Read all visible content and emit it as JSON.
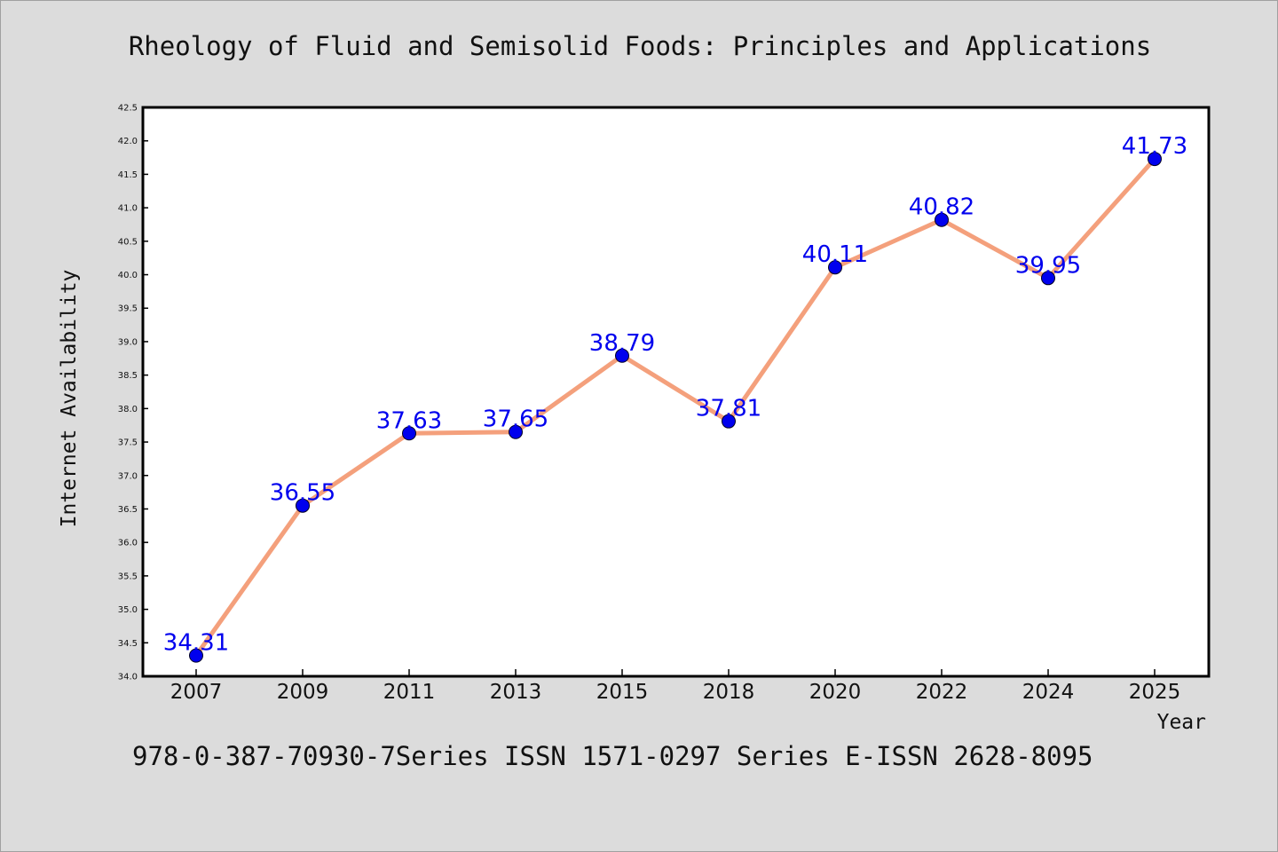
{
  "chart_data": {
    "type": "line",
    "title": "Rheology of Fluid and Semisolid Foods: Principles and Applications",
    "footer": "978-0-387-70930-7Series ISSN 1571-0297 Series E-ISSN 2628-8095",
    "xlabel": "Year",
    "ylabel": "Internet Availability",
    "categories": [
      "2007",
      "2009",
      "2011",
      "2013",
      "2015",
      "2018",
      "2020",
      "2022",
      "2024",
      "2025"
    ],
    "values": [
      34.31,
      36.55,
      37.63,
      37.65,
      38.79,
      37.81,
      40.11,
      40.82,
      39.95,
      41.73
    ],
    "value_labels": [
      "34.31",
      "36.55",
      "37.63",
      "37.65",
      "38.79",
      "37.81",
      "40.11",
      "40.82",
      "39.95",
      "41.73"
    ],
    "ylim": [
      34.0,
      42.5
    ],
    "yticks": [
      "34.0",
      "34.5",
      "35.0",
      "35.5",
      "36.0",
      "36.5",
      "37.0",
      "37.5",
      "38.0",
      "38.5",
      "39.0",
      "39.5",
      "40.0",
      "40.5",
      "41.0",
      "41.5",
      "42.0",
      "42.5"
    ],
    "grid": false,
    "legend": "none",
    "line_color": "#f4a07c",
    "marker_color": "#0000ee",
    "label_color": "#0000ee"
  }
}
